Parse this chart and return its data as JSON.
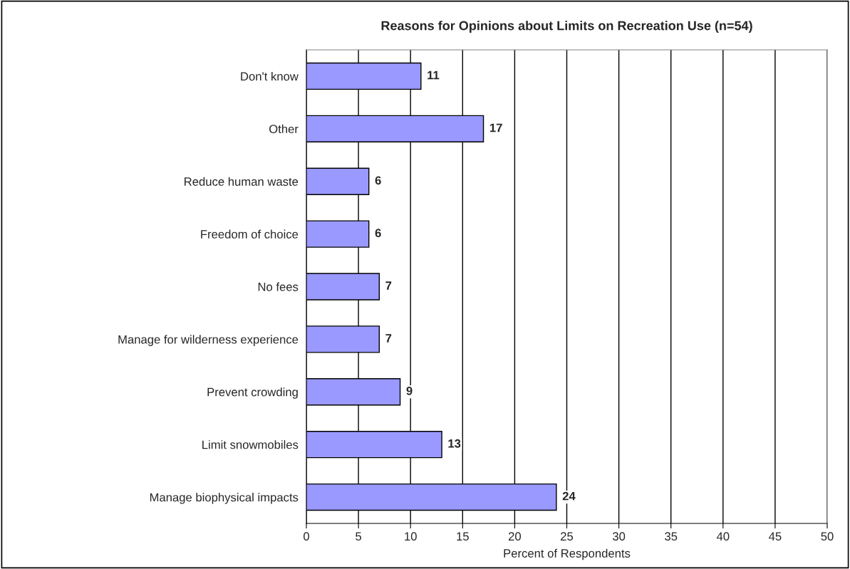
{
  "chart_data": {
    "type": "bar",
    "orientation": "horizontal",
    "title": "Reasons for Opinions about Limits on Recreation Use (n=54)",
    "categories": [
      "Don't know",
      "Other",
      "Reduce human waste",
      "Freedom of choice",
      "No fees",
      "Manage for wilderness experience",
      "Prevent crowding",
      "Limit snowmobiles",
      "Manage biophysical impacts"
    ],
    "values": [
      11,
      17,
      6,
      6,
      7,
      7,
      9,
      13,
      24
    ],
    "color": "#9999ff",
    "xlabel": "Percent of Respondents",
    "xlim": [
      0,
      50
    ],
    "xticks": [
      0,
      5,
      10,
      15,
      20,
      25,
      30,
      35,
      40,
      45,
      50
    ],
    "grid": "x",
    "data_labels": true
  }
}
